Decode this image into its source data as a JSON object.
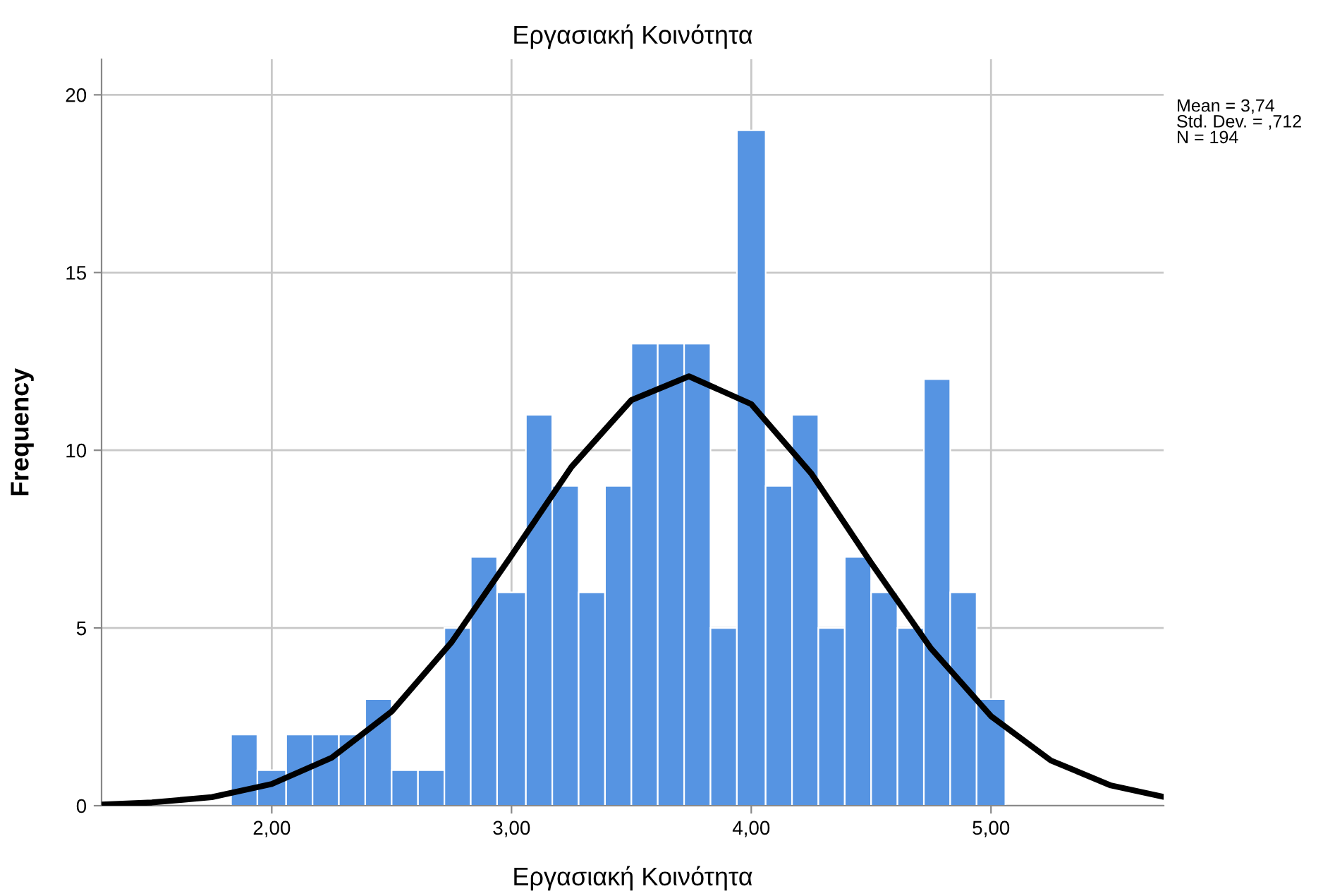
{
  "chart_data": {
    "type": "histogram",
    "title": "Εργασιακή Κοινότητα",
    "xlabel": "Εργασιακή Κοινότητα",
    "ylabel": "Frequency",
    "bins": [
      1.83,
      1.94,
      2.06,
      2.17,
      2.28,
      2.39,
      2.5,
      2.61,
      2.72,
      2.83,
      2.94,
      3.06,
      3.17,
      3.28,
      3.39,
      3.5,
      3.61,
      3.72,
      3.83,
      3.94,
      4.06,
      4.17,
      4.28,
      4.39,
      4.5,
      4.61,
      4.72,
      4.83,
      4.94,
      5.06
    ],
    "values": [
      2,
      1,
      2,
      2,
      2,
      3,
      1,
      1,
      5,
      7,
      6,
      11,
      9,
      6,
      9,
      13,
      13,
      13,
      5,
      19,
      9,
      11,
      5,
      7,
      6,
      5,
      12,
      6,
      3
    ],
    "color": "#5694e2",
    "series": [
      {
        "type": "line",
        "color": "#000000",
        "x": [
          1.29,
          1.5,
          1.75,
          2.0,
          2.25,
          2.5,
          2.75,
          3.0,
          3.25,
          3.5,
          3.74,
          4.0,
          4.25,
          4.5,
          4.75,
          5.0,
          5.25,
          5.5,
          5.72
        ],
        "values": [
          0.03,
          0.09,
          0.24,
          0.61,
          1.35,
          2.65,
          4.6,
          7.04,
          9.53,
          11.41,
          12.08,
          11.3,
          9.35,
          6.83,
          4.42,
          2.52,
          1.27,
          0.57,
          0.25
        ]
      }
    ],
    "xlim": [
      1.29,
      5.72
    ],
    "ylim": [
      0,
      21
    ],
    "xticks": [
      {
        "value": 2,
        "label": "2,00"
      },
      {
        "value": 3,
        "label": "3,00"
      },
      {
        "value": 4,
        "label": "4,00"
      },
      {
        "value": 5,
        "label": "5,00"
      }
    ],
    "yticks": [
      0,
      5,
      10,
      15,
      20
    ],
    "grid": true,
    "annotations": [
      "Mean = 3,74\nStd. Dev. = ,712\nN = 194"
    ]
  }
}
